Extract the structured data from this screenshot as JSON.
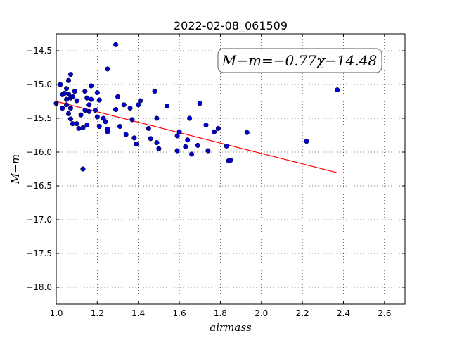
{
  "chart_data": {
    "type": "scatter",
    "title": "2022-02-08_061509",
    "xlabel": "airmass",
    "ylabel": "M−m",
    "xlim": [
      1.0,
      2.7
    ],
    "ylim": [
      -18.25,
      -14.25
    ],
    "y_inverted": true,
    "grid": true,
    "x_ticks": [
      "1.0",
      "1.2",
      "1.4",
      "1.6",
      "1.8",
      "2.0",
      "2.2",
      "2.4",
      "2.6"
    ],
    "y_ticks": [
      "−14.5",
      "−15.0",
      "−15.5",
      "−16.0",
      "−16.5",
      "−17.0",
      "−17.5",
      "−18.0"
    ],
    "annotation": "M−m=−0.77χ−14.48",
    "fit": {
      "slope": -0.77,
      "intercept": -14.48,
      "x_range": [
        1.0,
        2.37
      ],
      "color": "#ff0000"
    },
    "point_color": "#0000cc",
    "points": [
      {
        "x": 1.02,
        "y": -15.0
      },
      {
        "x": 1.03,
        "y": -15.15
      },
      {
        "x": 1.04,
        "y": -15.13
      },
      {
        "x": 1.05,
        "y": -15.06
      },
      {
        "x": 1.06,
        "y": -15.14
      },
      {
        "x": 1.06,
        "y": -14.94
      },
      {
        "x": 1.07,
        "y": -14.85
      },
      {
        "x": 1.05,
        "y": -15.22
      },
      {
        "x": 1.07,
        "y": -15.2
      },
      {
        "x": 1.08,
        "y": -15.18
      },
      {
        "x": 1.0,
        "y": -15.28
      },
      {
        "x": 1.03,
        "y": -15.35
      },
      {
        "x": 1.05,
        "y": -15.3
      },
      {
        "x": 1.07,
        "y": -15.35
      },
      {
        "x": 1.06,
        "y": -15.43
      },
      {
        "x": 1.07,
        "y": -15.51
      },
      {
        "x": 1.08,
        "y": -15.58
      },
      {
        "x": 1.09,
        "y": -15.1
      },
      {
        "x": 1.1,
        "y": -15.58
      },
      {
        "x": 1.11,
        "y": -15.65
      },
      {
        "x": 1.1,
        "y": -15.24
      },
      {
        "x": 1.12,
        "y": -15.45
      },
      {
        "x": 1.13,
        "y": -15.64
      },
      {
        "x": 1.14,
        "y": -15.1
      },
      {
        "x": 1.14,
        "y": -15.38
      },
      {
        "x": 1.15,
        "y": -15.6
      },
      {
        "x": 1.15,
        "y": -15.2
      },
      {
        "x": 1.16,
        "y": -15.4
      },
      {
        "x": 1.16,
        "y": -15.3
      },
      {
        "x": 1.17,
        "y": -15.02
      },
      {
        "x": 1.17,
        "y": -15.22
      },
      {
        "x": 1.13,
        "y": -16.25
      },
      {
        "x": 1.19,
        "y": -15.38
      },
      {
        "x": 1.2,
        "y": -15.12
      },
      {
        "x": 1.2,
        "y": -15.48
      },
      {
        "x": 1.21,
        "y": -15.62
      },
      {
        "x": 1.21,
        "y": -15.23
      },
      {
        "x": 1.23,
        "y": -15.5
      },
      {
        "x": 1.24,
        "y": -15.55
      },
      {
        "x": 1.25,
        "y": -15.66
      },
      {
        "x": 1.25,
        "y": -15.7
      },
      {
        "x": 1.25,
        "y": -14.77
      },
      {
        "x": 1.29,
        "y": -14.41
      },
      {
        "x": 1.29,
        "y": -15.37
      },
      {
        "x": 1.3,
        "y": -15.18
      },
      {
        "x": 1.31,
        "y": -15.62
      },
      {
        "x": 1.33,
        "y": -15.3
      },
      {
        "x": 1.34,
        "y": -15.74
      },
      {
        "x": 1.36,
        "y": -15.35
      },
      {
        "x": 1.37,
        "y": -15.52
      },
      {
        "x": 1.38,
        "y": -15.79
      },
      {
        "x": 1.39,
        "y": -15.88
      },
      {
        "x": 1.4,
        "y": -15.3
      },
      {
        "x": 1.41,
        "y": -15.24
      },
      {
        "x": 1.45,
        "y": -15.65
      },
      {
        "x": 1.46,
        "y": -15.8
      },
      {
        "x": 1.48,
        "y": -15.1
      },
      {
        "x": 1.49,
        "y": -15.86
      },
      {
        "x": 1.49,
        "y": -15.5
      },
      {
        "x": 1.5,
        "y": -15.95
      },
      {
        "x": 1.54,
        "y": -15.32
      },
      {
        "x": 1.59,
        "y": -15.98
      },
      {
        "x": 1.59,
        "y": -15.76
      },
      {
        "x": 1.6,
        "y": -15.7
      },
      {
        "x": 1.63,
        "y": -15.92
      },
      {
        "x": 1.64,
        "y": -15.82
      },
      {
        "x": 1.65,
        "y": -15.5
      },
      {
        "x": 1.66,
        "y": -16.03
      },
      {
        "x": 1.69,
        "y": -15.9
      },
      {
        "x": 1.7,
        "y": -15.28
      },
      {
        "x": 1.73,
        "y": -15.6
      },
      {
        "x": 1.74,
        "y": -15.98
      },
      {
        "x": 1.77,
        "y": -15.7
      },
      {
        "x": 1.79,
        "y": -15.65
      },
      {
        "x": 1.83,
        "y": -15.91
      },
      {
        "x": 1.84,
        "y": -16.13
      },
      {
        "x": 1.85,
        "y": -16.12
      },
      {
        "x": 1.93,
        "y": -15.71
      },
      {
        "x": 2.22,
        "y": -15.84
      },
      {
        "x": 2.37,
        "y": -15.08
      }
    ]
  }
}
